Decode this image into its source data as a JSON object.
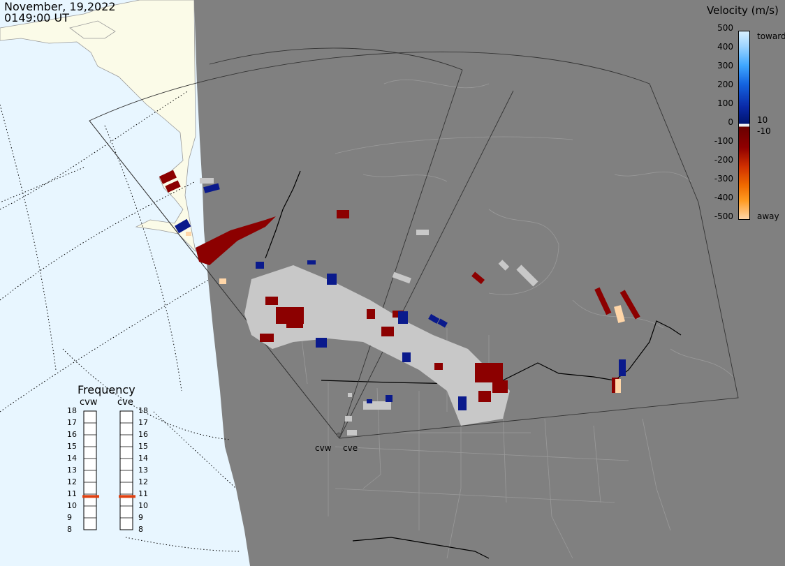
{
  "header": {
    "date": "November, 19,2022",
    "time": "0149:00 UT"
  },
  "velocity_legend": {
    "title": "Velocity (m/s)",
    "ticks": [
      "500",
      "400",
      "300",
      "200",
      "100",
      "0",
      "-100",
      "-200",
      "-300",
      "-400",
      "-500"
    ],
    "label_toward": "toward",
    "label_pos_threshold": "10",
    "label_neg_threshold": "-10",
    "label_away": "away",
    "colors": {
      "toward_max": "#d8f0ff",
      "toward_min": "#001470",
      "away_min": "#6a0000",
      "away_max": "#ffd6a8"
    }
  },
  "frequency_panel": {
    "title": "Frequency",
    "radars": [
      {
        "name": "cvw",
        "selected_mhz": 10.8
      },
      {
        "name": "cve",
        "selected_mhz": 10.8
      }
    ],
    "ticks": [
      "18",
      "17",
      "16",
      "15",
      "14",
      "13",
      "12",
      "11",
      "10",
      "9",
      "8"
    ],
    "marker_color": "#e04010"
  },
  "sites": [
    {
      "code": "cvw"
    },
    {
      "code": "cve"
    }
  ],
  "colors": {
    "daylight_ocean": "#e8f6ff",
    "daylight_land": "#fbfbe8",
    "night": "#808080",
    "ground_scatter": "#c8c8c8",
    "toward": "#0a1a8c",
    "away": "#8c0000"
  }
}
